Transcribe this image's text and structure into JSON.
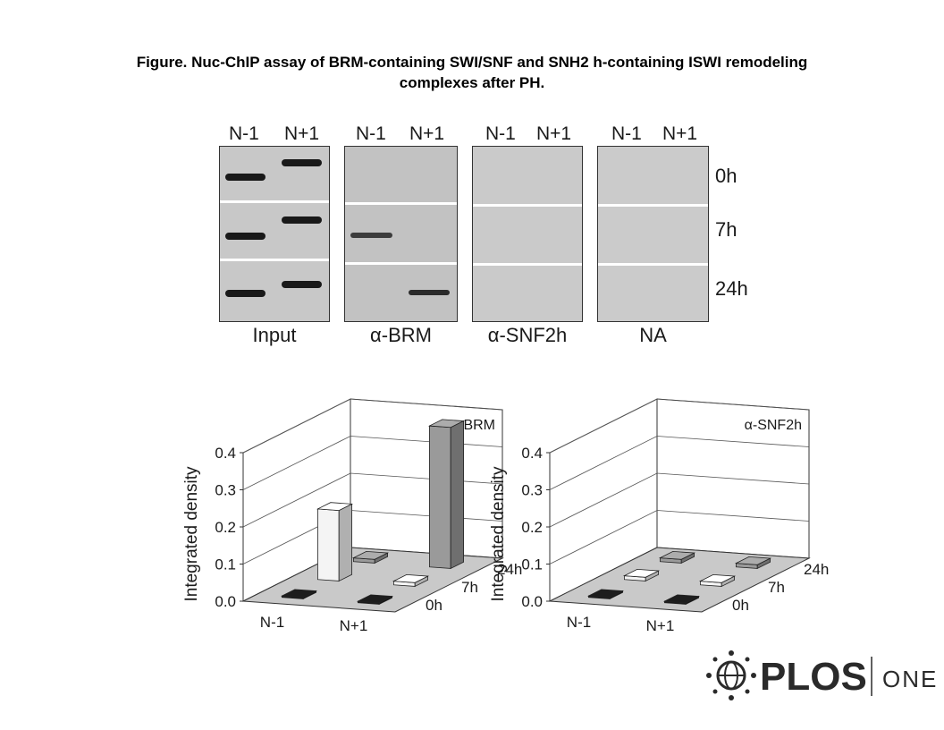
{
  "caption": {
    "line1": "Figure. Nuc-ChIP  assay of BRM-containing SWI/SNF and SNH2  h-containing ISWI remodeling",
    "line2": "complexes after PH."
  },
  "gels": {
    "lane_labels": [
      "N-1",
      "N+1"
    ],
    "time_labels": [
      "0h",
      "7h",
      "24h"
    ],
    "panels": [
      {
        "label": "Input",
        "background": "#c8c8c8"
      },
      {
        "label": "α-BRM",
        "background": "#c2c2c2"
      },
      {
        "label": "α-SNF2h",
        "background": "#cacaca"
      },
      {
        "label": "NA",
        "background": "#cbcbcb"
      }
    ],
    "band_intensity": {
      "Input": [
        [
          1,
          1
        ],
        [
          1,
          1
        ],
        [
          1,
          1
        ]
      ],
      "α-BRM": [
        [
          0,
          0
        ],
        [
          0.8,
          0
        ],
        [
          0,
          0.9
        ]
      ],
      "α-SNF2h": [
        [
          0,
          0
        ],
        [
          0,
          0
        ],
        [
          0,
          0
        ]
      ],
      "NA": [
        [
          0,
          0
        ],
        [
          0,
          0
        ],
        [
          0,
          0
        ]
      ]
    }
  },
  "chart_data": [
    {
      "type": "bar",
      "title": "α-BRM",
      "ylabel": "Integrated density",
      "ylim": [
        0,
        0.4
      ],
      "yticks": [
        "0.0",
        "0.1",
        "0.2",
        "0.3",
        "0.4"
      ],
      "categories": [
        "N-1",
        "N+1"
      ],
      "depth_categories": [
        "0h",
        "7h",
        "24h"
      ],
      "series": [
        {
          "name": "0h",
          "values": [
            0.0,
            0.0
          ],
          "color": "#1a1a1a"
        },
        {
          "name": "7h",
          "values": [
            0.19,
            0.01
          ],
          "color": "#f4f4f4"
        },
        {
          "name": "24h",
          "values": [
            0.01,
            0.38
          ],
          "color": "#9a9a9a"
        }
      ],
      "grid": true
    },
    {
      "type": "bar",
      "title": "α-SNF2h",
      "ylabel": "Integrated density",
      "ylim": [
        0,
        0.4
      ],
      "yticks": [
        "0.0",
        "0.1",
        "0.2",
        "0.3",
        "0.4"
      ],
      "categories": [
        "N-1",
        "N+1"
      ],
      "depth_categories": [
        "0h",
        "7h",
        "24h"
      ],
      "series": [
        {
          "name": "0h",
          "values": [
            0.0,
            0.0
          ],
          "color": "#1a1a1a"
        },
        {
          "name": "7h",
          "values": [
            0.01,
            0.01
          ],
          "color": "#f4f4f4"
        },
        {
          "name": "24h",
          "values": [
            0.01,
            0.01
          ],
          "color": "#9a9a9a"
        }
      ],
      "grid": true
    }
  ],
  "logo": {
    "text": "PLOS",
    "suffix": "ONE"
  }
}
